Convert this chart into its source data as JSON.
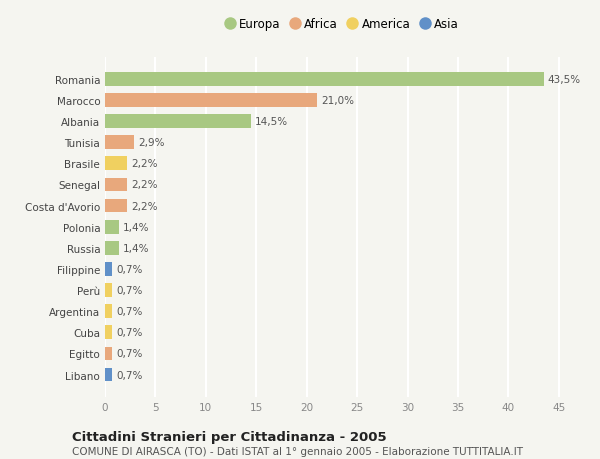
{
  "countries": [
    "Romania",
    "Marocco",
    "Albania",
    "Tunisia",
    "Brasile",
    "Senegal",
    "Costa d'Avorio",
    "Polonia",
    "Russia",
    "Filippine",
    "Perù",
    "Argentina",
    "Cuba",
    "Egitto",
    "Libano"
  ],
  "values": [
    43.5,
    21.0,
    14.5,
    2.9,
    2.2,
    2.2,
    2.2,
    1.4,
    1.4,
    0.7,
    0.7,
    0.7,
    0.7,
    0.7,
    0.7
  ],
  "labels": [
    "43,5%",
    "21,0%",
    "14,5%",
    "2,9%",
    "2,2%",
    "2,2%",
    "2,2%",
    "1,4%",
    "1,4%",
    "0,7%",
    "0,7%",
    "0,7%",
    "0,7%",
    "0,7%",
    "0,7%"
  ],
  "continents": [
    "Europa",
    "Africa",
    "Europa",
    "Africa",
    "America",
    "Africa",
    "Africa",
    "Europa",
    "Europa",
    "Asia",
    "America",
    "America",
    "America",
    "Africa",
    "Asia"
  ],
  "continent_colors": {
    "Europa": "#a8c882",
    "Africa": "#e8a87c",
    "America": "#f0d060",
    "Asia": "#6090c8"
  },
  "legend_order": [
    "Europa",
    "Africa",
    "America",
    "Asia"
  ],
  "title": "Cittadini Stranieri per Cittadinanza - 2005",
  "subtitle": "COMUNE DI AIRASCA (TO) - Dati ISTAT al 1° gennaio 2005 - Elaborazione TUTTITALIA.IT",
  "xlim": [
    0,
    47
  ],
  "xticks": [
    0,
    5,
    10,
    15,
    20,
    25,
    30,
    35,
    40,
    45
  ],
  "background_color": "#f5f5f0",
  "grid_color": "#ffffff",
  "bar_height": 0.65,
  "label_fontsize": 7.5,
  "tick_fontsize": 7.5,
  "title_fontsize": 9.5,
  "subtitle_fontsize": 7.5,
  "legend_fontsize": 8.5
}
